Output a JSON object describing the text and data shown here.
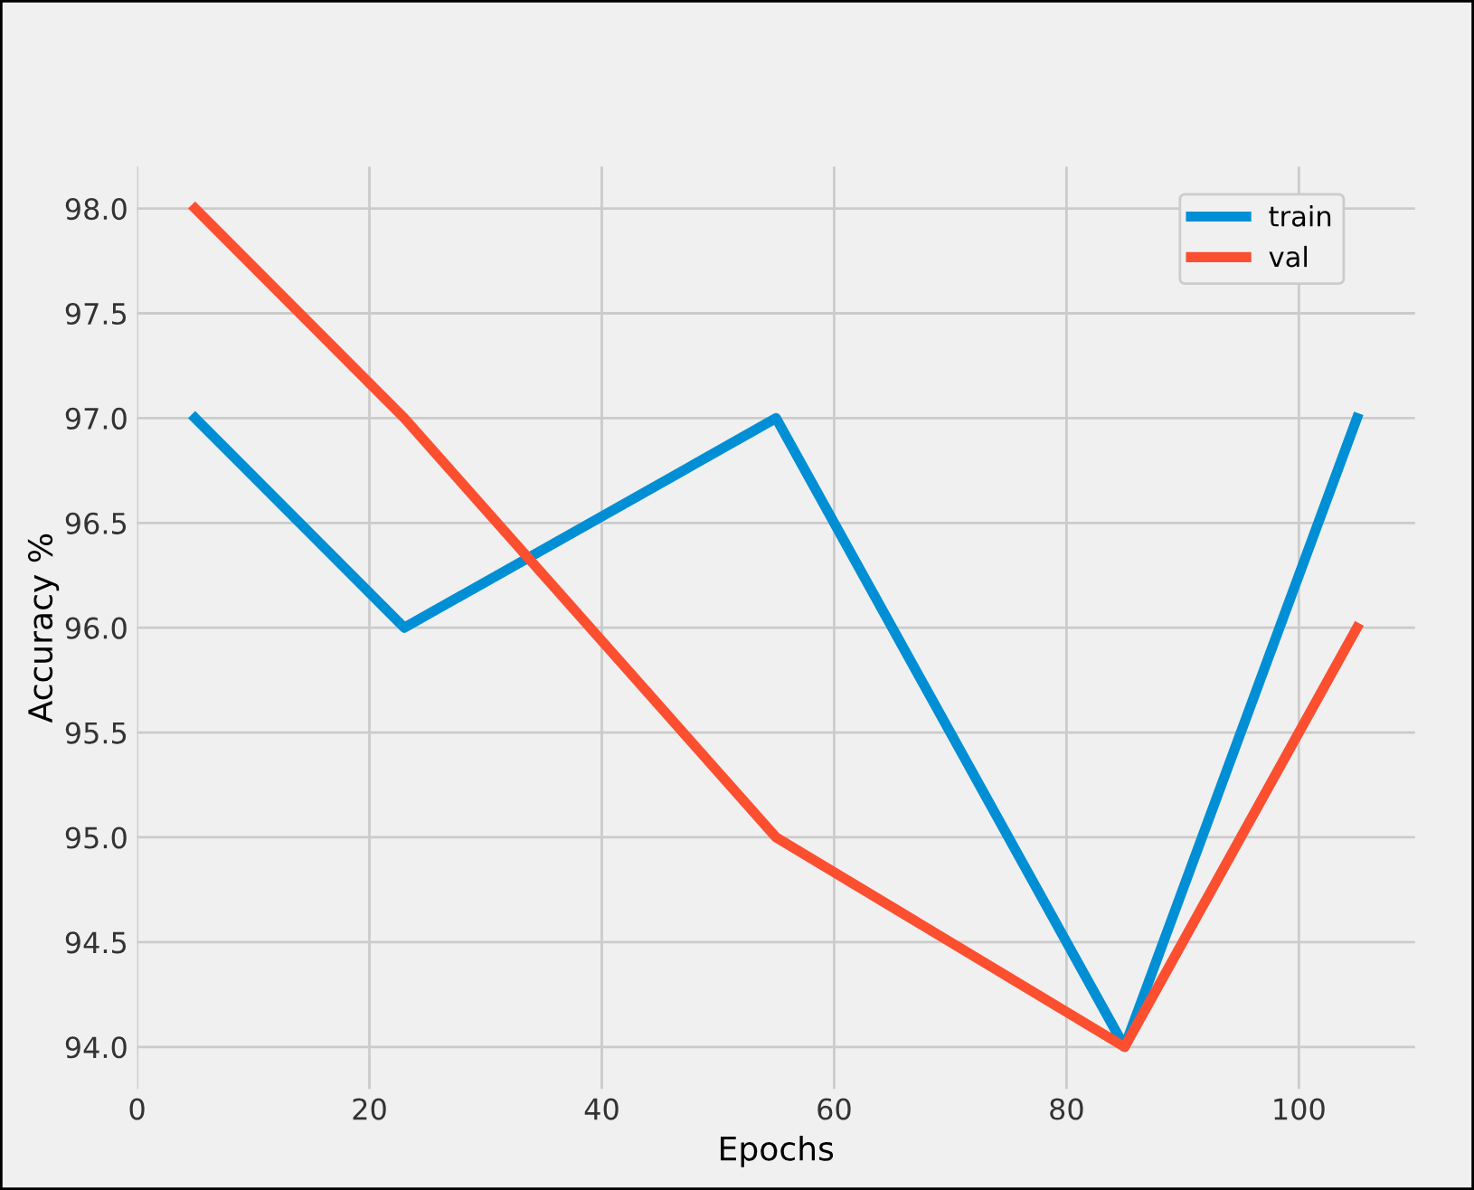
{
  "chart_data": {
    "type": "line",
    "xlabel": "Epochs",
    "ylabel": "Accuracy %",
    "x": [
      5,
      23,
      55,
      85,
      105
    ],
    "series": [
      {
        "name": "train",
        "color": "#008fd5",
        "values": [
          97,
          96,
          97,
          94,
          97
        ]
      },
      {
        "name": "val",
        "color": "#fc4f30",
        "values": [
          98,
          97,
          95,
          94,
          96
        ]
      }
    ],
    "xlim": [
      0,
      110
    ],
    "xticks": [
      0,
      20,
      40,
      60,
      80,
      100
    ],
    "ylim": [
      93.8,
      98.2
    ],
    "yticks": [
      {
        "value": 94,
        "label": "94.0"
      },
      {
        "value": 94.5,
        "label": "94.5"
      },
      {
        "value": 95,
        "label": "95.0"
      },
      {
        "value": 95.5,
        "label": "95.5"
      },
      {
        "value": 96,
        "label": "96.0"
      },
      {
        "value": 96.5,
        "label": "96.5"
      },
      {
        "value": 97,
        "label": "97.0"
      },
      {
        "value": 97.5,
        "label": "97.5"
      },
      {
        "value": 98,
        "label": "98.0"
      }
    ],
    "grid": true,
    "legend": "top right",
    "marker": "none",
    "line_style": "solid"
  }
}
